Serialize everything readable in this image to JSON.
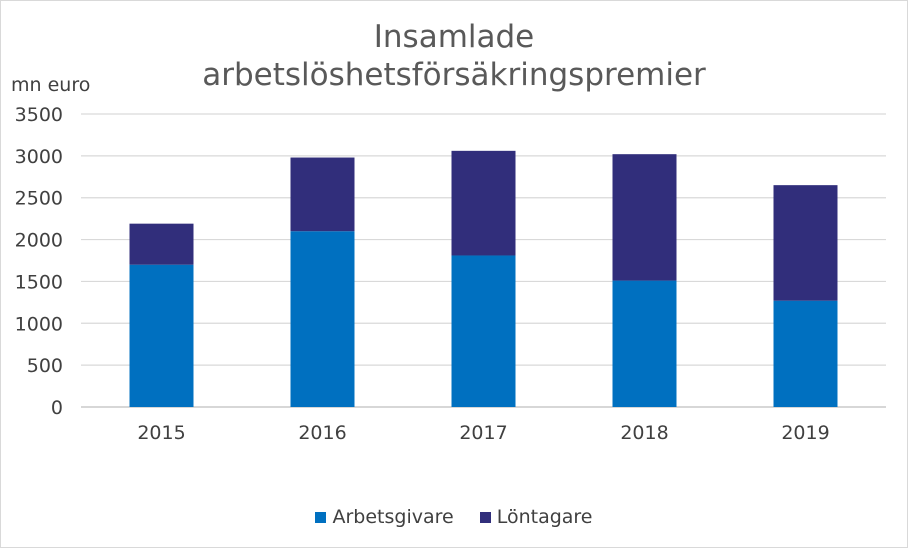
{
  "chart_data": {
    "type": "bar",
    "stacked": true,
    "title_lines": [
      "Insamlade",
      "arbetslöshetsförsäkringspremier"
    ],
    "ylabel": "mn euro",
    "xlabel": "",
    "categories": [
      "2015",
      "2016",
      "2017",
      "2018",
      "2019"
    ],
    "series": [
      {
        "name": "Arbetsgivare",
        "color": "#0070c0",
        "values": [
          1700,
          2100,
          1810,
          1510,
          1270
        ]
      },
      {
        "name": "Löntagare",
        "color": "#312e7b",
        "values": [
          490,
          880,
          1250,
          1510,
          1380
        ]
      }
    ],
    "ylim": [
      0,
      3500
    ],
    "yticks": [
      "0",
      "500",
      "1000",
      "1500",
      "2000",
      "2500",
      "3000",
      "3500"
    ],
    "grid": true,
    "legend_position": "bottom"
  }
}
